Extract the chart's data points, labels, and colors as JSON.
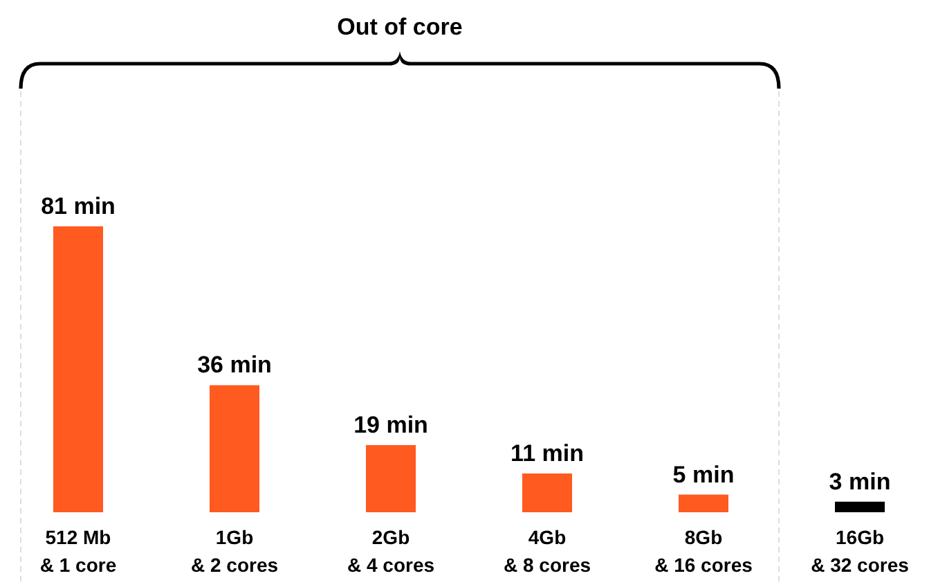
{
  "chart_data": {
    "type": "bar",
    "categories": [
      "512 Mb\n& 1 core",
      "1Gb\n& 2 cores",
      "2Gb\n& 4 cores",
      "4Gb\n& 8 cores",
      "8Gb\n& 16 cores",
      "16Gb\n& 32 cores"
    ],
    "values": [
      81,
      36,
      19,
      11,
      5,
      3
    ],
    "colors": [
      "#ff5a1f",
      "#ff5a1f",
      "#ff5a1f",
      "#ff5a1f",
      "#ff5a1f",
      "#000000"
    ],
    "value_labels": [
      "81 min",
      "36 min",
      "19 min",
      "11 min",
      "5 min",
      "3 min"
    ],
    "annotations": [
      "Out of core"
    ]
  }
}
